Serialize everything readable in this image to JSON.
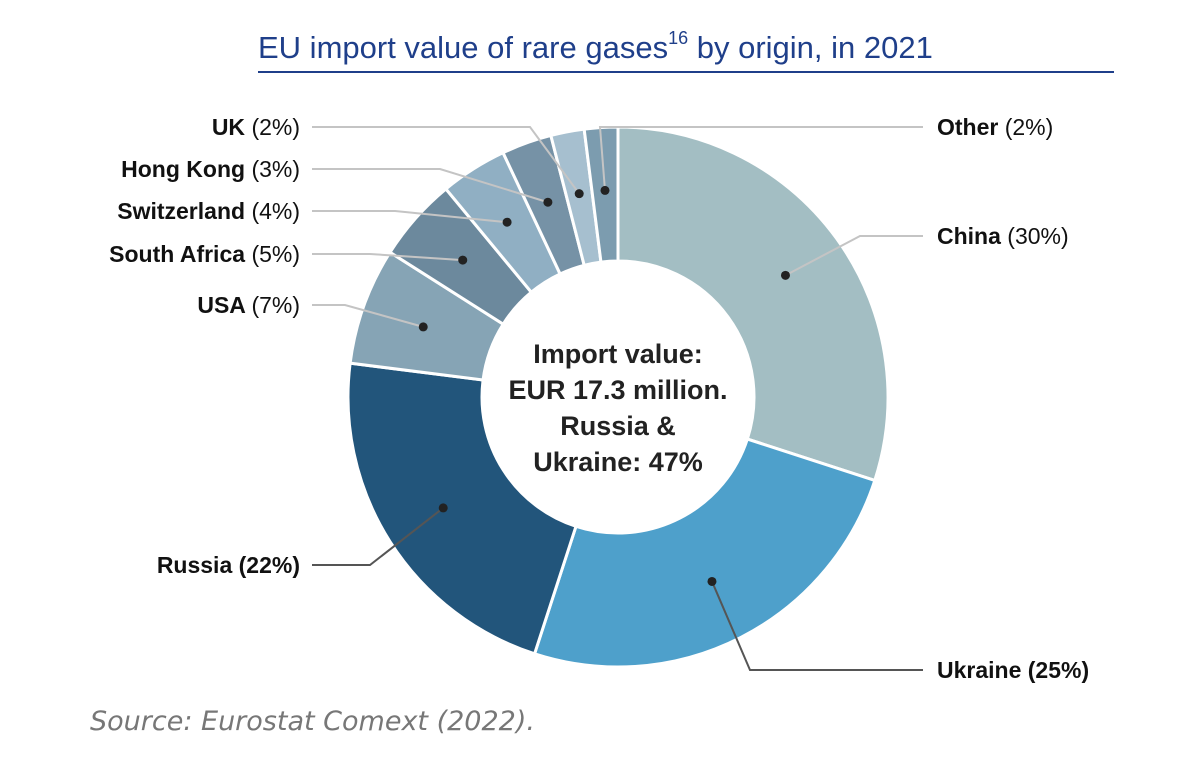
{
  "title_main": "EU import value of rare gases",
  "title_sup": "16",
  "title_tail": " by origin, in 2021",
  "source": "Source: Eurostat Comext (2022).",
  "center_label": [
    "Import value:",
    "EUR 17.3 million.",
    "Russia &",
    "Ukraine: 47%"
  ],
  "chart_data": {
    "type": "pie",
    "variant": "donut",
    "unit": "%",
    "total_import_value": "EUR 17.3 million",
    "slices": [
      {
        "name": "China",
        "value": 30,
        "label": "(30%)",
        "color": "#a3bec3"
      },
      {
        "name": "Ukraine",
        "value": 25,
        "label": "(25%)",
        "color": "#4ea0cb"
      },
      {
        "name": "Russia",
        "value": 22,
        "label": "(22%)",
        "color": "#22557b"
      },
      {
        "name": "USA",
        "value": 7,
        "label": "(7%)",
        "color": "#86a4b5"
      },
      {
        "name": "South Africa",
        "value": 5,
        "label": "(5%)",
        "color": "#6c899d"
      },
      {
        "name": "Switzerland",
        "value": 4,
        "label": "(4%)",
        "color": "#90afc3"
      },
      {
        "name": "Hong Kong",
        "value": 3,
        "label": "(3%)",
        "color": "#7692a6"
      },
      {
        "name": "UK",
        "value": 2,
        "label": "(2%)",
        "color": "#a6bfcf"
      },
      {
        "name": "Other",
        "value": 2,
        "label": "(2%)",
        "color": "#7c9caf"
      }
    ]
  }
}
